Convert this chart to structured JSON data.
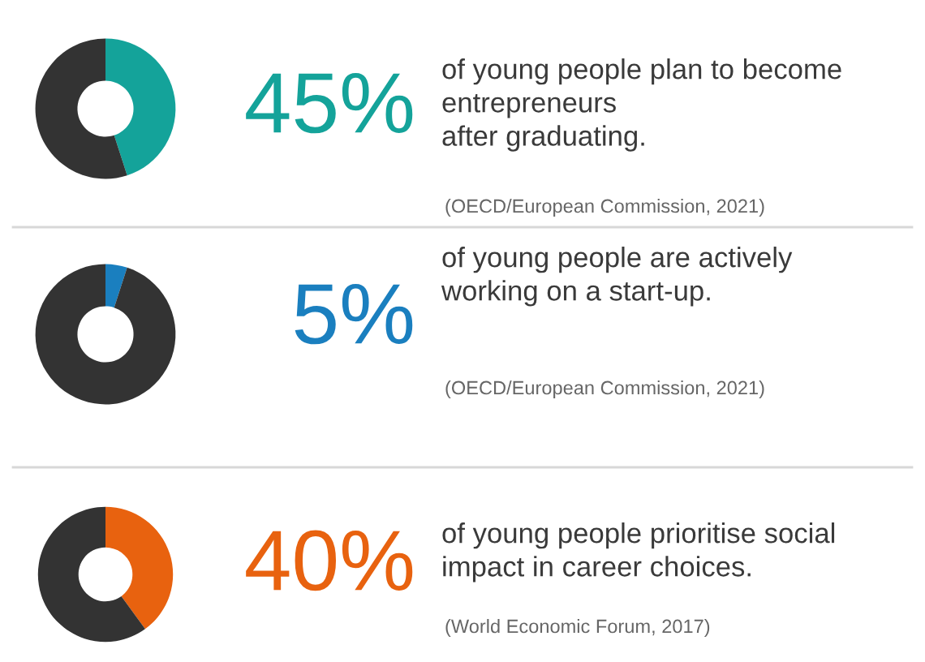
{
  "chart_data": [
    {
      "type": "donut",
      "title": "45%",
      "categories": [
        null,
        null
      ],
      "values": [
        45,
        55
      ],
      "colors": [
        "#14a39a",
        "#333333"
      ],
      "annotations": [
        "of young people plan to become\nentrepreneurs\nafter graduating.",
        "(OECD/European Commission, 2021)"
      ]
    },
    {
      "type": "donut",
      "title": "5%",
      "categories": [
        null,
        null
      ],
      "values": [
        5,
        95
      ],
      "colors": [
        "#1a7fbf",
        "#333333"
      ],
      "annotations": [
        "of young people are actively\nworking on a start-up.",
        "(OECD/European Commission, 2021)"
      ]
    },
    {
      "type": "donut",
      "title": "40%",
      "categories": [
        null,
        null
      ],
      "values": [
        40,
        60
      ],
      "colors": [
        "#e8620f",
        "#333333"
      ],
      "annotations": [
        "of young people prioritise social\nimpact in career choices.",
        "(World Economic Forum, 2017)"
      ]
    }
  ]
}
